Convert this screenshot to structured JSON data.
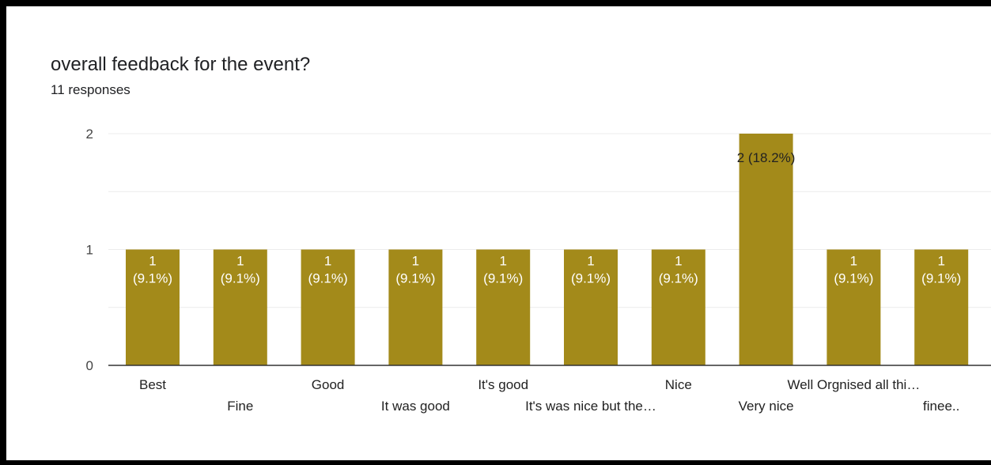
{
  "colors": {
    "bar": "#a38a1a",
    "grid": "#ececec",
    "axis": "#333333",
    "text": "#202124"
  },
  "chart_data": {
    "type": "bar",
    "title": "overall feedback for the event?",
    "subtitle": "11 responses",
    "categories": [
      "Best",
      "Fine",
      "Good",
      "It was good",
      "It's good",
      "It's was nice but the…",
      "Nice",
      "Very nice",
      "Well Orgnised all thi…",
      "finee.."
    ],
    "values": [
      1,
      1,
      1,
      1,
      1,
      1,
      1,
      2,
      1,
      1
    ],
    "value_labels": [
      "1 (9.1%)",
      "1 (9.1%)",
      "1 (9.1%)",
      "1 (9.1%)",
      "1 (9.1%)",
      "1 (9.1%)",
      "1 (9.1%)",
      "2 (18.2%)",
      "1 (9.1%)",
      "1 (9.1%)"
    ],
    "yticks": [
      0,
      1,
      2
    ],
    "ylim": [
      0,
      2
    ],
    "grid": true,
    "legend": "none"
  }
}
